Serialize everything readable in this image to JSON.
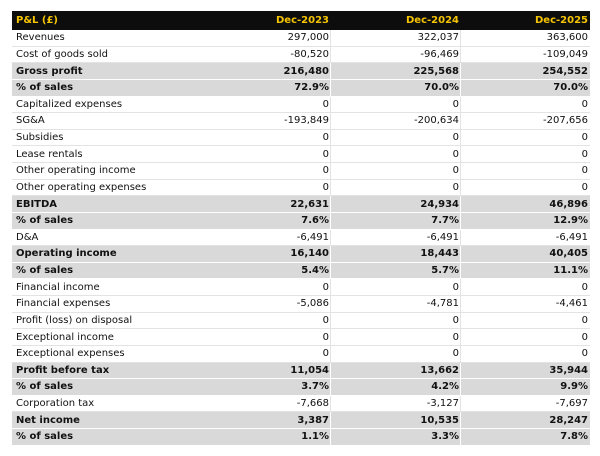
{
  "table": {
    "header": [
      "P&L (£)",
      "Dec-2023",
      "Dec-2024",
      "Dec-2025"
    ],
    "rows": [
      [
        "Revenues",
        "297,000",
        "322,037",
        "363,600"
      ],
      [
        "Cost of goods sold",
        "-80,520",
        "-96,469",
        "-109,049"
      ],
      [
        "Gross profit",
        "216,480",
        "225,568",
        "254,552"
      ],
      [
        "% of sales",
        "72.9%",
        "70.0%",
        "70.0%"
      ],
      [
        "Capitalized expenses",
        "0",
        "0",
        "0"
      ],
      [
        "SG&A",
        "-193,849",
        "-200,634",
        "-207,656"
      ],
      [
        "Subsidies",
        "0",
        "0",
        "0"
      ],
      [
        "Lease rentals",
        "0",
        "0",
        "0"
      ],
      [
        "Other operating income",
        "0",
        "0",
        "0"
      ],
      [
        "Other operating expenses",
        "0",
        "0",
        "0"
      ],
      [
        "EBITDA",
        "22,631",
        "24,934",
        "46,896"
      ],
      [
        "% of sales",
        "7.6%",
        "7.7%",
        "12.9%"
      ],
      [
        "D&A",
        "-6,491",
        "-6,491",
        "-6,491"
      ],
      [
        "Operating income",
        "16,140",
        "18,443",
        "40,405"
      ],
      [
        "% of sales",
        "5.4%",
        "5.7%",
        "11.1%"
      ],
      [
        "Financial income",
        "0",
        "0",
        "0"
      ],
      [
        "Financial expenses",
        "-5,086",
        "-4,781",
        "-4,461"
      ],
      [
        "Profit (loss) on disposal",
        "0",
        "0",
        "0"
      ],
      [
        "Exceptional income",
        "0",
        "0",
        "0"
      ],
      [
        "Exceptional expenses",
        "0",
        "0",
        "0"
      ],
      [
        "Profit before tax",
        "11,054",
        "13,662",
        "35,944"
      ],
      [
        "% of sales",
        "3.7%",
        "4.2%",
        "9.9%"
      ],
      [
        "Corporation tax",
        "-7,668",
        "-3,127",
        "-7,697"
      ],
      [
        "Net income",
        "3,387",
        "10,535",
        "28,247"
      ],
      [
        "% of sales",
        "1.1%",
        "3.3%",
        "7.8%"
      ]
    ]
  }
}
